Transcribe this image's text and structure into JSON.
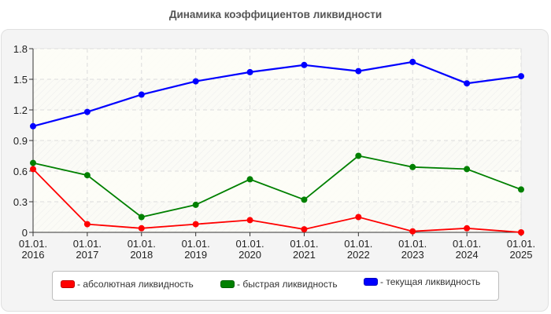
{
  "title": "Динамика коэффициентов ликвидности",
  "legend": [
    {
      "label": "- абсолютная ликвидность",
      "color": "#ff0000"
    },
    {
      "label": "- быстрая ликвидность",
      "color": "#008000"
    },
    {
      "label": "- текущая ликвидность",
      "color": "#0000ff"
    }
  ],
  "chart_data": {
    "type": "line",
    "title": "Динамика коэффициентов ликвидности",
    "xlabel": "",
    "ylabel": "",
    "categories": [
      "01.01.2016",
      "01.01.2017",
      "01.01.2018",
      "01.01.2019",
      "01.01.2020",
      "01.01.2021",
      "01.01.2022",
      "01.01.2023",
      "01.01.2024",
      "01.01.2025"
    ],
    "x_tick_labels": [
      [
        "01.01.",
        "2016"
      ],
      [
        "01.01.",
        "2017"
      ],
      [
        "01.01.",
        "2018"
      ],
      [
        "01.01.",
        "2019"
      ],
      [
        "01.01.",
        "2020"
      ],
      [
        "01.01.",
        "2021"
      ],
      [
        "01.01.",
        "2022"
      ],
      [
        "01.01.",
        "2023"
      ],
      [
        "01.01.",
        "2024"
      ],
      [
        "01.01.",
        "2025"
      ]
    ],
    "y_ticks": [
      "0",
      "0.3",
      "0.6",
      "0.9",
      "1.2",
      "1.5",
      "1.8"
    ],
    "ylim": [
      0,
      1.8
    ],
    "grid": true,
    "legend_position": "bottom",
    "series": [
      {
        "name": "абсолютная ликвидность",
        "color": "#ff0000",
        "values": [
          0.62,
          0.08,
          0.04,
          0.08,
          0.12,
          0.03,
          0.15,
          0.01,
          0.04,
          0.0
        ]
      },
      {
        "name": "быстрая ликвидность",
        "color": "#008000",
        "values": [
          0.68,
          0.56,
          0.15,
          0.27,
          0.52,
          0.32,
          0.75,
          0.64,
          0.62,
          0.42
        ]
      },
      {
        "name": "текущая ликвидность",
        "color": "#0000ff",
        "values": [
          1.04,
          1.18,
          1.35,
          1.48,
          1.57,
          1.64,
          1.58,
          1.67,
          1.46,
          1.53
        ]
      }
    ]
  }
}
